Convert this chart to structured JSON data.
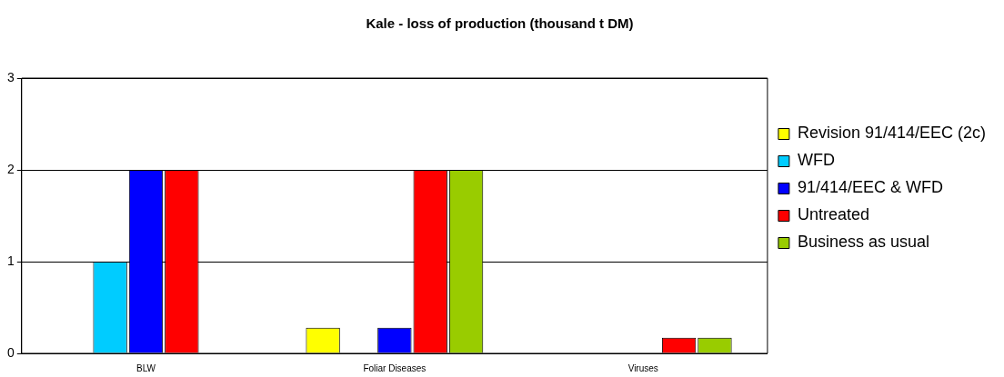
{
  "chart_data": {
    "type": "bar",
    "title": "Kale - loss of production (thousand t DM)",
    "categories": [
      "BLW",
      "Foliar Diseases",
      "Viruses"
    ],
    "series": [
      {
        "name": "Revision 91/414/EEC (2c)",
        "color": "#ffff00",
        "values": [
          0,
          0.28,
          0
        ]
      },
      {
        "name": "WFD",
        "color": "#00ccff",
        "values": [
          1,
          0,
          0
        ]
      },
      {
        "name": "91/414/EEC & WFD",
        "color": "#0000ff",
        "values": [
          2,
          0.28,
          0
        ]
      },
      {
        "name": "Untreated",
        "color": "#ff0000",
        "values": [
          2,
          2,
          0.17
        ]
      },
      {
        "name": "Business as usual",
        "color": "#99cc00",
        "values": [
          0,
          2,
          0.17
        ]
      }
    ],
    "ylim": [
      0,
      3
    ],
    "yticks": [
      0,
      1,
      2,
      3
    ],
    "grid": "y",
    "legend": "right"
  }
}
